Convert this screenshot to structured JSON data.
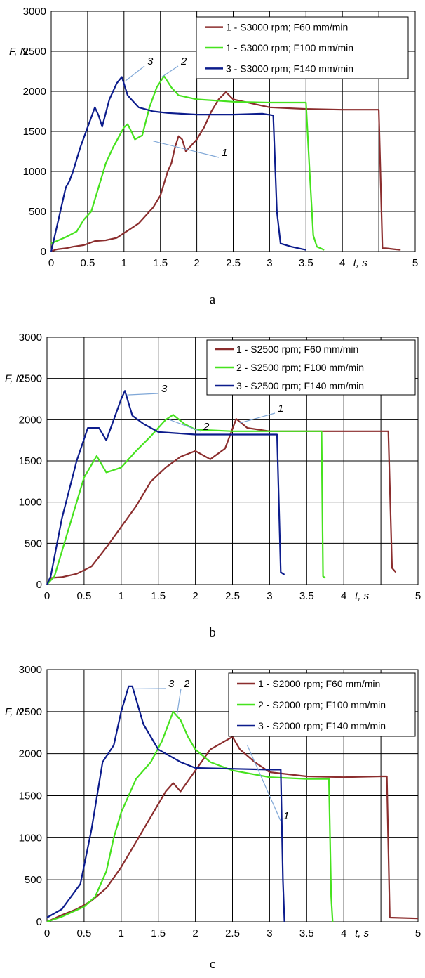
{
  "chart_data": [
    {
      "type": "line",
      "caption": "a",
      "xlabel": "t, s",
      "ylabel": "F, N",
      "xlim": [
        0,
        5
      ],
      "ylim": [
        0,
        3000
      ],
      "xticks": [
        "0",
        "0.5",
        "1",
        "1.5",
        "2",
        "2.5",
        "3",
        "3.5",
        "4",
        "5"
      ],
      "yticks": [
        "0",
        "500",
        "1000",
        "1500",
        "2000",
        "2500",
        "3000"
      ],
      "grid": true,
      "legend_position": "top-right",
      "series": [
        {
          "name": "1 - S3000 rpm; F60 mm/min",
          "label": "1",
          "color": "#8B2D2D",
          "x": [
            0,
            0.05,
            0.1,
            0.2,
            0.3,
            0.45,
            0.6,
            0.75,
            0.9,
            1.0,
            1.2,
            1.4,
            1.5,
            1.6,
            1.65,
            1.7,
            1.75,
            1.8,
            1.85,
            1.9,
            2.0,
            2.1,
            2.2,
            2.3,
            2.4,
            2.5,
            3.0,
            3.5,
            4.0,
            4.5,
            4.55,
            4.6,
            4.7,
            4.8
          ],
          "y": [
            0,
            20,
            30,
            40,
            60,
            80,
            130,
            140,
            170,
            230,
            350,
            550,
            700,
            1000,
            1100,
            1300,
            1440,
            1400,
            1250,
            1300,
            1400,
            1550,
            1750,
            1900,
            1990,
            1900,
            1800,
            1780,
            1770,
            1770,
            40,
            40,
            30,
            20
          ]
        },
        {
          "name": "1 - S3000 rpm; F100 mm/min",
          "label": "2",
          "color": "#46E21E",
          "x": [
            0,
            0.05,
            0.2,
            0.35,
            0.45,
            0.55,
            0.65,
            0.75,
            0.85,
            1.0,
            1.05,
            1.1,
            1.15,
            1.25,
            1.35,
            1.45,
            1.55,
            1.65,
            1.75,
            2.0,
            2.5,
            3.0,
            3.5,
            3.55,
            3.6,
            3.65,
            3.7,
            3.75
          ],
          "y": [
            100,
            120,
            180,
            250,
            400,
            500,
            800,
            1100,
            1300,
            1550,
            1590,
            1500,
            1400,
            1450,
            1800,
            2050,
            2190,
            2050,
            1950,
            1900,
            1870,
            1860,
            1860,
            1000,
            200,
            60,
            40,
            20
          ]
        },
        {
          "name": "3 - S3000 rpm; F140 mm/min",
          "label": "3",
          "color": "#0C1C8C",
          "x": [
            0,
            0.05,
            0.1,
            0.15,
            0.2,
            0.25,
            0.3,
            0.4,
            0.5,
            0.6,
            0.65,
            0.7,
            0.8,
            0.9,
            0.97,
            1.05,
            1.2,
            1.4,
            1.6,
            2.0,
            2.5,
            2.9,
            3.05,
            3.1,
            3.15,
            3.3,
            3.5
          ],
          "y": [
            0,
            200,
            400,
            600,
            800,
            880,
            1000,
            1300,
            1550,
            1800,
            1700,
            1560,
            1900,
            2100,
            2180,
            1950,
            1800,
            1750,
            1730,
            1710,
            1710,
            1720,
            1700,
            500,
            100,
            60,
            20
          ]
        }
      ],
      "annotations": [
        "1",
        "2",
        "3"
      ]
    },
    {
      "type": "line",
      "caption": "b",
      "xlabel": "t, s",
      "ylabel": "F, N",
      "xlim": [
        0,
        5
      ],
      "ylim": [
        0,
        3000
      ],
      "xticks": [
        "0",
        "0.5",
        "1",
        "1.5",
        "2",
        "2.5",
        "3",
        "3.5",
        "4",
        "5"
      ],
      "yticks": [
        "0",
        "500",
        "1000",
        "1500",
        "2000",
        "2500",
        "3000"
      ],
      "grid": true,
      "legend_position": "top-right",
      "series": [
        {
          "name": "1 - S2500 rpm; F60 mm/min",
          "label": "1",
          "color": "#8B2D2D",
          "x": [
            0,
            0.05,
            0.2,
            0.4,
            0.6,
            0.8,
            1.0,
            1.2,
            1.4,
            1.6,
            1.8,
            2.0,
            2.2,
            2.4,
            2.55,
            2.7,
            3.0,
            3.5,
            4.0,
            4.5,
            4.6,
            4.65,
            4.7
          ],
          "y": [
            0,
            80,
            90,
            130,
            220,
            450,
            700,
            950,
            1250,
            1420,
            1550,
            1620,
            1520,
            1650,
            2010,
            1900,
            1860,
            1860,
            1860,
            1860,
            1860,
            200,
            150
          ]
        },
        {
          "name": "2 - S2500 rpm; F100 mm/min",
          "label": "2",
          "color": "#46E21E",
          "x": [
            0,
            0.1,
            0.3,
            0.5,
            0.67,
            0.8,
            1.0,
            1.2,
            1.4,
            1.6,
            1.7,
            1.85,
            2.0,
            2.5,
            3.0,
            3.5,
            3.7,
            3.72,
            3.75
          ],
          "y": [
            0,
            100,
            700,
            1300,
            1560,
            1360,
            1420,
            1620,
            1800,
            2000,
            2060,
            1950,
            1880,
            1860,
            1860,
            1860,
            1860,
            100,
            80
          ]
        },
        {
          "name": "3 - S2500 rpm; F140 mm/min",
          "label": "3",
          "color": "#0C1C8C",
          "x": [
            0,
            0.05,
            0.2,
            0.4,
            0.55,
            0.7,
            0.8,
            0.9,
            1.0,
            1.05,
            1.15,
            1.3,
            1.5,
            2.0,
            2.5,
            3.0,
            3.1,
            3.15,
            3.2
          ],
          "y": [
            0,
            100,
            800,
            1500,
            1900,
            1900,
            1750,
            2000,
            2250,
            2350,
            2050,
            1950,
            1850,
            1820,
            1820,
            1820,
            1820,
            150,
            120
          ]
        }
      ],
      "annotations": [
        "1",
        "2",
        "3"
      ]
    },
    {
      "type": "line",
      "caption": "c",
      "xlabel": "t, s",
      "ylabel": "F, N",
      "xlim": [
        0,
        5
      ],
      "ylim": [
        0,
        3000
      ],
      "xticks": [
        "0",
        "0.5",
        "1",
        "1.5",
        "2",
        "2.5",
        "3",
        "3.5",
        "4",
        "5"
      ],
      "yticks": [
        "0",
        "500",
        "1000",
        "1500",
        "2000",
        "2500",
        "3000"
      ],
      "grid": true,
      "legend_position": "top-right",
      "series": [
        {
          "name": "1 - S2000 rpm; F60 mm/min",
          "label": "1",
          "color": "#8B2D2D",
          "x": [
            0,
            0.2,
            0.4,
            0.6,
            0.8,
            1.0,
            1.2,
            1.4,
            1.6,
            1.7,
            1.8,
            2.0,
            2.2,
            2.4,
            2.5,
            2.6,
            2.8,
            3.0,
            3.5,
            4.0,
            4.5,
            4.58,
            4.62,
            5.0
          ],
          "y": [
            0,
            80,
            150,
            250,
            400,
            650,
            950,
            1250,
            1550,
            1650,
            1550,
            1800,
            2050,
            2150,
            2200,
            2050,
            1900,
            1780,
            1730,
            1720,
            1730,
            1730,
            50,
            40
          ]
        },
        {
          "name": "2 - S2000 rpm; F100 mm/min",
          "label": "2",
          "color": "#46E21E",
          "x": [
            0,
            0.2,
            0.5,
            0.65,
            0.8,
            0.9,
            1.0,
            1.2,
            1.4,
            1.55,
            1.7,
            1.8,
            1.9,
            2.0,
            2.2,
            2.5,
            3.0,
            3.5,
            3.8,
            3.83,
            3.85
          ],
          "y": [
            0,
            60,
            180,
            300,
            600,
            1000,
            1300,
            1700,
            1900,
            2150,
            2500,
            2400,
            2200,
            2050,
            1900,
            1800,
            1720,
            1700,
            1700,
            300,
            0
          ]
        },
        {
          "name": "3 - S2000 rpm; F140 mm/min",
          "label": "3",
          "color": "#0C1C8C",
          "x": [
            0,
            0.2,
            0.45,
            0.6,
            0.75,
            0.9,
            1.0,
            1.1,
            1.15,
            1.3,
            1.5,
            1.8,
            2.0,
            2.5,
            3.0,
            3.15,
            3.18,
            3.2
          ],
          "y": [
            50,
            150,
            450,
            1100,
            1900,
            2100,
            2500,
            2800,
            2800,
            2350,
            2050,
            1900,
            1830,
            1820,
            1810,
            1810,
            500,
            0
          ]
        }
      ],
      "annotations": [
        "1",
        "2",
        "3"
      ]
    }
  ]
}
